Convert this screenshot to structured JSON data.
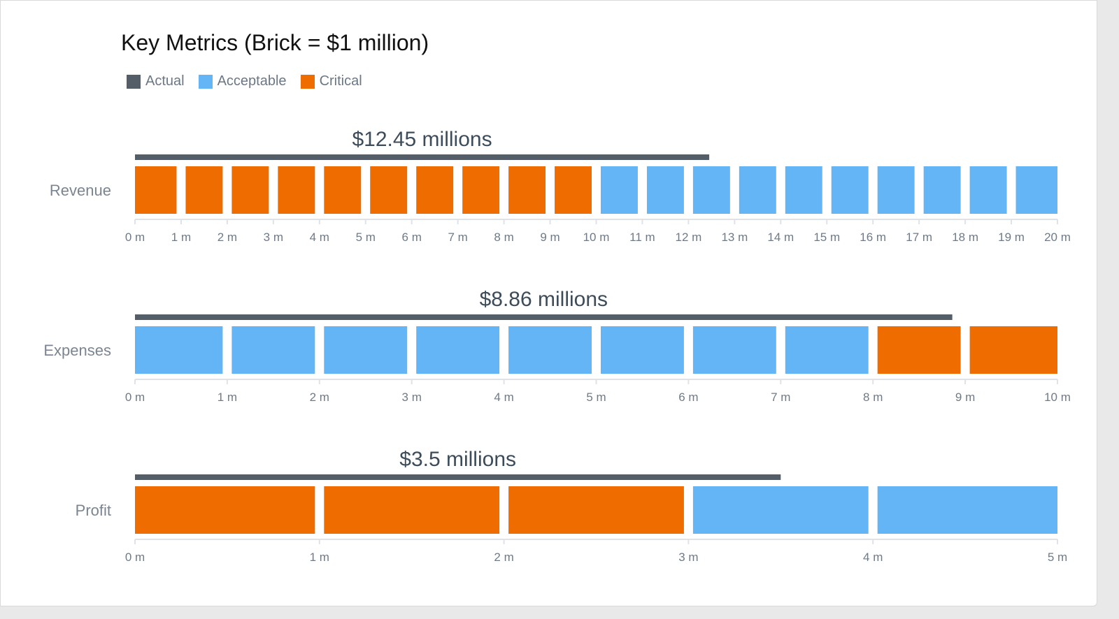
{
  "title": "Key Metrics (Brick = $1 million)",
  "legend": [
    {
      "name": "Actual",
      "color": "#545e68"
    },
    {
      "name": "Acceptable",
      "color": "#64b5f6"
    },
    {
      "name": "Critical",
      "color": "#ef6c00"
    }
  ],
  "chart_data": {
    "type": "bullet",
    "title": "Key Metrics (Brick = $1 million)",
    "unit_suffix": " m",
    "brick_value": 1,
    "metrics": [
      {
        "name": "Revenue",
        "actual": 12.45,
        "actual_label": "$12.45 millions",
        "min": 0,
        "max": 20,
        "ranges": [
          {
            "from": 0,
            "to": 10,
            "status": "Critical"
          },
          {
            "from": 10,
            "to": 20,
            "status": "Acceptable"
          }
        ],
        "ticks": [
          "0 m",
          "1 m",
          "2 m",
          "3 m",
          "4 m",
          "5 m",
          "6 m",
          "7 m",
          "8 m",
          "9 m",
          "10 m",
          "11 m",
          "12 m",
          "13 m",
          "14 m",
          "15 m",
          "16 m",
          "17 m",
          "18 m",
          "19 m",
          "20 m"
        ]
      },
      {
        "name": "Expenses",
        "actual": 8.86,
        "actual_label": "$8.86 millions",
        "min": 0,
        "max": 10,
        "ranges": [
          {
            "from": 0,
            "to": 8,
            "status": "Acceptable"
          },
          {
            "from": 8,
            "to": 10,
            "status": "Critical"
          }
        ],
        "ticks": [
          "0 m",
          "1 m",
          "2 m",
          "3 m",
          "4 m",
          "5 m",
          "6 m",
          "7 m",
          "8 m",
          "9 m",
          "10 m"
        ]
      },
      {
        "name": "Profit",
        "actual": 3.5,
        "actual_label": "$3.5 millions",
        "min": 0,
        "max": 5,
        "ranges": [
          {
            "from": 0,
            "to": 3,
            "status": "Critical"
          },
          {
            "from": 3,
            "to": 5,
            "status": "Acceptable"
          }
        ],
        "ticks": [
          "0 m",
          "1 m",
          "2 m",
          "3 m",
          "4 m",
          "5 m"
        ]
      }
    ]
  }
}
